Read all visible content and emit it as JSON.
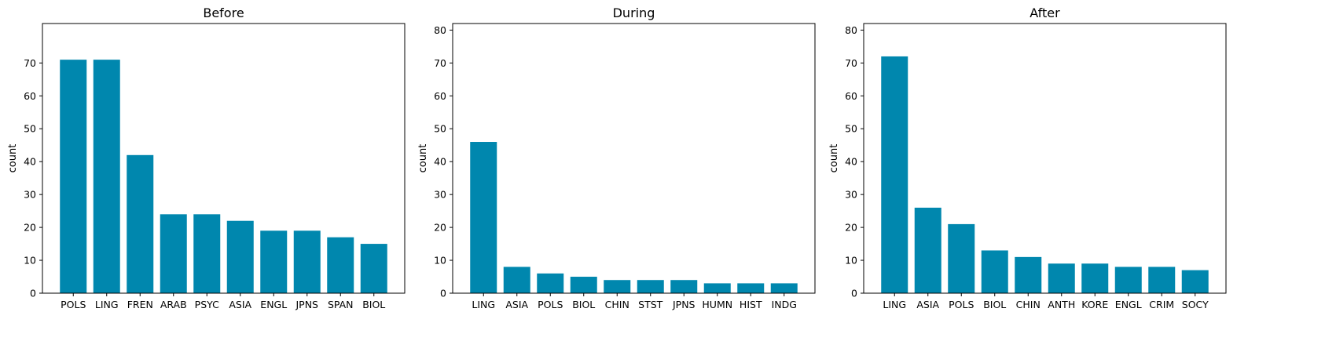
{
  "colors": {
    "bar": "#0087ae"
  },
  "chart_data": [
    {
      "type": "bar",
      "title": "Before",
      "xlabel": "",
      "ylabel": "count",
      "ylim": [
        0,
        82
      ],
      "yticks": [
        0,
        10,
        20,
        30,
        40,
        50,
        60,
        70
      ],
      "categories": [
        "POLS",
        "LING",
        "FREN",
        "ARAB",
        "PSYC",
        "ASIA",
        "ENGL",
        "JPNS",
        "SPAN",
        "BIOL"
      ],
      "values": [
        71,
        71,
        42,
        24,
        24,
        22,
        19,
        19,
        17,
        15
      ]
    },
    {
      "type": "bar",
      "title": "During",
      "xlabel": "",
      "ylabel": "count",
      "ylim": [
        0,
        82
      ],
      "yticks": [
        0,
        10,
        20,
        30,
        40,
        50,
        60,
        70,
        80
      ],
      "categories": [
        "LING",
        "ASIA",
        "POLS",
        "BIOL",
        "CHIN",
        "STST",
        "JPNS",
        "HUMN",
        "HIST",
        "INDG"
      ],
      "values": [
        46,
        8,
        6,
        5,
        4,
        4,
        4,
        3,
        3,
        3
      ]
    },
    {
      "type": "bar",
      "title": "After",
      "xlabel": "",
      "ylabel": "count",
      "ylim": [
        0,
        82
      ],
      "yticks": [
        0,
        10,
        20,
        30,
        40,
        50,
        60,
        70,
        80
      ],
      "categories": [
        "LING",
        "ASIA",
        "POLS",
        "BIOL",
        "CHIN",
        "ANTH",
        "KORE",
        "ENGL",
        "CRIM",
        "SOCY"
      ],
      "values": [
        72,
        26,
        21,
        13,
        11,
        9,
        9,
        8,
        8,
        7
      ]
    }
  ]
}
